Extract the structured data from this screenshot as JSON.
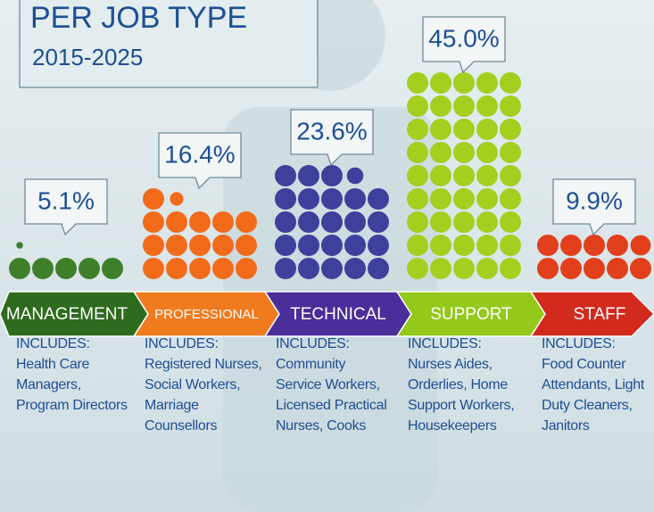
{
  "chart_data": {
    "type": "pictograph",
    "title": "PER JOB TYPE",
    "subtitle": "2015-2025",
    "categories": [
      "MANAGEMENT",
      "PROFESSIONAL",
      "TECHNICAL",
      "SUPPORT",
      "STAFF"
    ],
    "values": [
      5.1,
      16.4,
      23.6,
      45.0,
      9.9
    ],
    "value_labels": [
      "5.1%",
      "16.4%",
      "23.6%",
      "45.0%",
      "9.9%"
    ],
    "dot_colors": [
      "#3f7f2a",
      "#f26b1b",
      "#3f3f9c",
      "#a4cf1f",
      "#e2401c"
    ],
    "band_colors": [
      "#2f6b1e",
      "#f07a1e",
      "#4a2e9a",
      "#94c81a",
      "#d32a1e"
    ],
    "includes_label": "INCLUDES:",
    "includes": [
      "Health Care Managers, Program Directors",
      "Registered Nurses, Social Workers, Marriage Counsellors",
      "Community Service Workers, Licensed Practical Nurses, Cooks",
      "Nurses Aides, Orderlies, Home Support Workers, Housekeepers",
      "Food Counter Attendants, Light Duty Cleaners, Janitors"
    ]
  }
}
